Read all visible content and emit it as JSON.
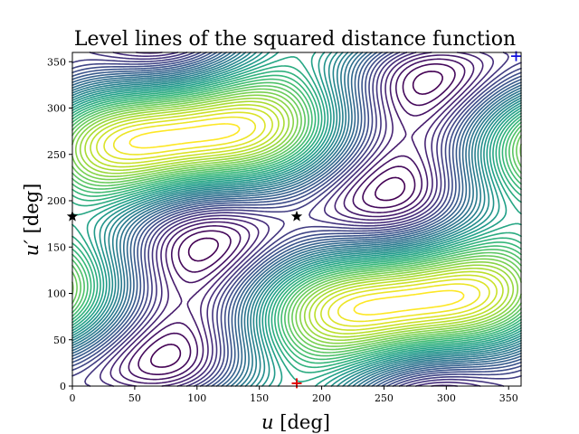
{
  "chart_data": {
    "type": "contour",
    "title": "Level lines of the squared distance function",
    "xlabel": "u [deg]",
    "ylabel": "u′ [deg]",
    "xlim": [
      0,
      360
    ],
    "ylim": [
      0,
      360
    ],
    "xticks": [
      0,
      50,
      100,
      150,
      200,
      250,
      300,
      350
    ],
    "yticks": [
      0,
      50,
      100,
      150,
      200,
      250,
      300,
      350
    ],
    "colormap": "viridis",
    "grid": false,
    "legend": "none",
    "levels": 40,
    "markers": [
      {
        "name": "saddle",
        "symbol": "star",
        "color": "#000000",
        "x": 180,
        "y": 183
      },
      {
        "name": "saddle",
        "symbol": "star",
        "color": "#000000",
        "x": 0,
        "y": 183
      },
      {
        "name": "maximum",
        "symbol": "plus",
        "color": "#e00000",
        "x": 180,
        "y": 3
      },
      {
        "name": "minimum",
        "symbol": "plus",
        "color": "#1010dd",
        "x": 356,
        "y": 356
      }
    ]
  }
}
